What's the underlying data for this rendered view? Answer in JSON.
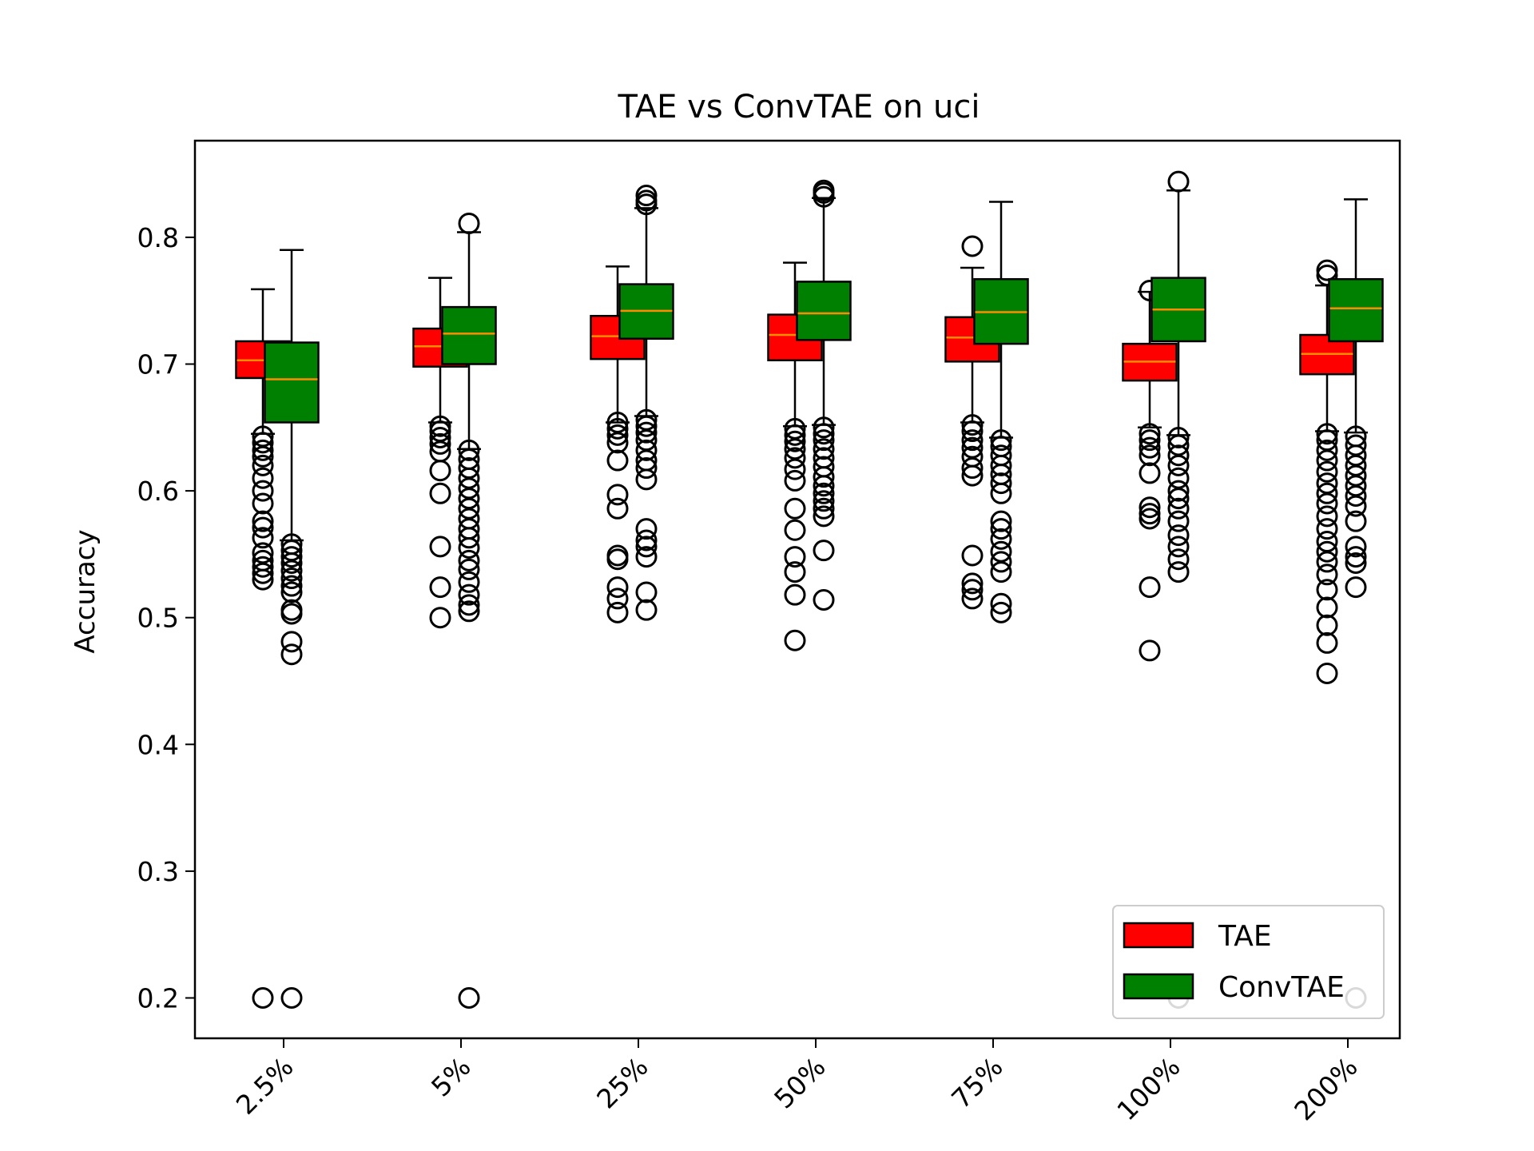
{
  "chart_data": {
    "type": "box",
    "title": "TAE vs ConvTAE on uci",
    "xlabel": "",
    "ylabel": "Accuracy",
    "ylim": [
      0.17,
      0.875
    ],
    "yticks": [
      "0.2",
      "0.3",
      "0.4",
      "0.5",
      "0.6",
      "0.7",
      "0.8"
    ],
    "categories": [
      "2.5%",
      "5%",
      "25%",
      "50%",
      "75%",
      "100%",
      "200%"
    ],
    "legend": {
      "position": "lower-right"
    },
    "colors": {
      "TAE": "#ff0000",
      "ConvTAE": "#008000",
      "median": "#ff8c00"
    },
    "series": [
      {
        "name": "TAE",
        "boxes": [
          {
            "whislo": 0.645,
            "q1": 0.689,
            "med": 0.703,
            "q3": 0.718,
            "whishi": 0.759,
            "fliers": [
              0.643,
              0.638,
              0.632,
              0.627,
              0.62,
              0.61,
              0.6,
              0.59,
              0.576,
              0.571,
              0.563,
              0.551,
              0.545,
              0.54,
              0.535,
              0.53,
              0.2
            ]
          },
          {
            "whislo": 0.654,
            "q1": 0.698,
            "med": 0.714,
            "q3": 0.728,
            "whishi": 0.768,
            "fliers": [
              0.651,
              0.647,
              0.642,
              0.637,
              0.631,
              0.616,
              0.598,
              0.556,
              0.524,
              0.5
            ]
          },
          {
            "whislo": 0.654,
            "q1": 0.704,
            "med": 0.722,
            "q3": 0.738,
            "whishi": 0.777,
            "fliers": [
              0.654,
              0.649,
              0.644,
              0.638,
              0.624,
              0.597,
              0.586,
              0.549,
              0.546,
              0.524,
              0.515,
              0.504
            ]
          },
          {
            "whislo": 0.651,
            "q1": 0.703,
            "med": 0.723,
            "q3": 0.739,
            "whishi": 0.78,
            "fliers": [
              0.649,
              0.644,
              0.639,
              0.633,
              0.626,
              0.617,
              0.608,
              0.586,
              0.569,
              0.548,
              0.536,
              0.518,
              0.482
            ]
          },
          {
            "whislo": 0.654,
            "q1": 0.702,
            "med": 0.721,
            "q3": 0.737,
            "whishi": 0.776,
            "fliers": [
              0.793,
              0.652,
              0.647,
              0.64,
              0.634,
              0.627,
              0.618,
              0.612,
              0.549,
              0.527,
              0.522,
              0.515
            ]
          },
          {
            "whislo": 0.65,
            "q1": 0.687,
            "med": 0.702,
            "q3": 0.716,
            "whishi": 0.757,
            "fliers": [
              0.758,
              0.645,
              0.64,
              0.634,
              0.628,
              0.614,
              0.587,
              0.582,
              0.578,
              0.524,
              0.474
            ]
          },
          {
            "whislo": 0.647,
            "q1": 0.692,
            "med": 0.708,
            "q3": 0.723,
            "whishi": 0.762,
            "fliers": [
              0.774,
              0.77,
              0.645,
              0.64,
              0.632,
              0.624,
              0.615,
              0.606,
              0.598,
              0.59,
              0.58,
              0.57,
              0.56,
              0.552,
              0.544,
              0.534,
              0.522,
              0.508,
              0.494,
              0.48,
              0.456
            ]
          }
        ]
      },
      {
        "name": "ConvTAE",
        "boxes": [
          {
            "whislo": 0.561,
            "q1": 0.654,
            "med": 0.688,
            "q3": 0.717,
            "whishi": 0.79,
            "fliers": [
              0.558,
              0.553,
              0.548,
              0.543,
              0.537,
              0.531,
              0.525,
              0.52,
              0.506,
              0.503,
              0.481,
              0.471,
              0.2
            ]
          },
          {
            "whislo": 0.633,
            "q1": 0.7,
            "med": 0.724,
            "q3": 0.745,
            "whishi": 0.804,
            "fliers": [
              0.811,
              0.632,
              0.625,
              0.618,
              0.61,
              0.602,
              0.594,
              0.586,
              0.578,
              0.57,
              0.563,
              0.555,
              0.545,
              0.538,
              0.528,
              0.518,
              0.51,
              0.505,
              0.2
            ]
          },
          {
            "whislo": 0.659,
            "q1": 0.72,
            "med": 0.742,
            "q3": 0.763,
            "whishi": 0.823,
            "fliers": [
              0.833,
              0.829,
              0.826,
              0.656,
              0.651,
              0.646,
              0.64,
              0.632,
              0.624,
              0.618,
              0.609,
              0.57,
              0.561,
              0.556,
              0.548,
              0.52,
              0.506
            ]
          },
          {
            "whislo": 0.652,
            "q1": 0.719,
            "med": 0.74,
            "q3": 0.765,
            "whishi": 0.831,
            "fliers": [
              0.837,
              0.835,
              0.832,
              0.65,
              0.645,
              0.64,
              0.633,
              0.626,
              0.619,
              0.611,
              0.604,
              0.598,
              0.592,
              0.586,
              0.58,
              0.553,
              0.514
            ]
          },
          {
            "whislo": 0.642,
            "q1": 0.716,
            "med": 0.741,
            "q3": 0.767,
            "whishi": 0.828,
            "fliers": [
              0.64,
              0.635,
              0.628,
              0.62,
              0.613,
              0.606,
              0.598,
              0.576,
              0.57,
              0.562,
              0.552,
              0.544,
              0.536,
              0.511,
              0.504
            ]
          },
          {
            "whislo": 0.644,
            "q1": 0.718,
            "med": 0.743,
            "q3": 0.768,
            "whishi": 0.837,
            "fliers": [
              0.844,
              0.642,
              0.636,
              0.628,
              0.62,
              0.61,
              0.6,
              0.594,
              0.586,
              0.576,
              0.565,
              0.556,
              0.546,
              0.536,
              0.2
            ]
          },
          {
            "whislo": 0.646,
            "q1": 0.718,
            "med": 0.744,
            "q3": 0.767,
            "whishi": 0.83,
            "fliers": [
              0.643,
              0.636,
              0.628,
              0.62,
              0.612,
              0.604,
              0.596,
              0.588,
              0.576,
              0.556,
              0.548,
              0.543,
              0.524,
              0.2
            ]
          }
        ]
      }
    ]
  }
}
